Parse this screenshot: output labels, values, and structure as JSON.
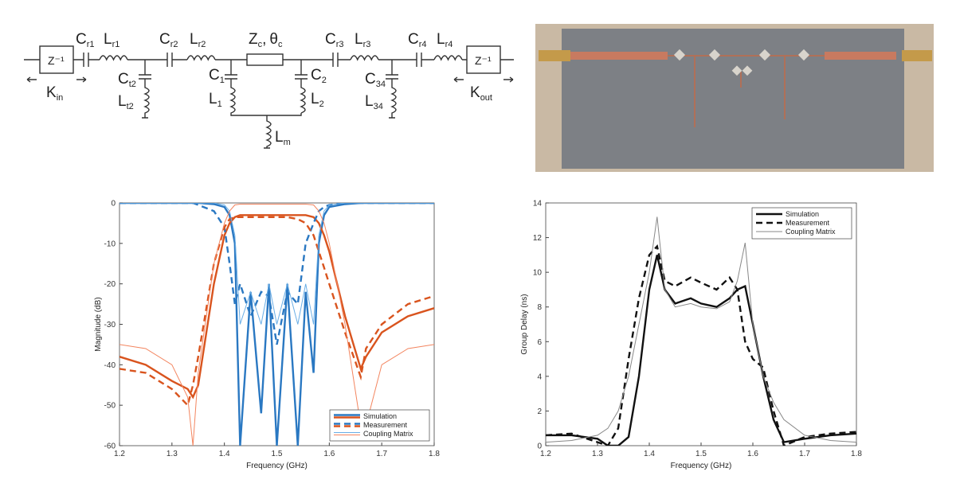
{
  "circuit": {
    "labels": [
      {
        "base": "C",
        "sub": "r1"
      },
      {
        "base": "L",
        "sub": "r1"
      },
      {
        "base": "C",
        "sub": "t2"
      },
      {
        "base": "L",
        "sub": "t2"
      },
      {
        "base": "C",
        "sub": "r2"
      },
      {
        "base": "L",
        "sub": "r2"
      },
      {
        "base": "Z",
        "sub": "c"
      },
      {
        "base": "θ",
        "sub": "c"
      },
      {
        "base": "C",
        "sub": "1"
      },
      {
        "base": "L",
        "sub": "1"
      },
      {
        "base": "C",
        "sub": "2"
      },
      {
        "base": "L",
        "sub": "2"
      },
      {
        "base": "L",
        "sub": "m"
      },
      {
        "base": "C",
        "sub": "r3"
      },
      {
        "base": "L",
        "sub": "r3"
      },
      {
        "base": "C",
        "sub": "34"
      },
      {
        "base": "L",
        "sub": "34"
      },
      {
        "base": "C",
        "sub": "r4"
      },
      {
        "base": "L",
        "sub": "r4"
      },
      {
        "base": "K",
        "sub": "in"
      },
      {
        "base": "K",
        "sub": "out"
      }
    ],
    "inverter": "Z⁻¹",
    "separator": ","
  },
  "chart_data": [
    {
      "type": "line",
      "xlabel": "Frequency (GHz)",
      "ylabel": "Magnitude (dB)",
      "xlim": [
        1.2,
        1.8
      ],
      "ylim": [
        -60,
        0
      ],
      "xticks": [
        1.2,
        1.3,
        1.4,
        1.5,
        1.6,
        1.7,
        1.8
      ],
      "yticks": [
        -60,
        -50,
        -40,
        -30,
        -20,
        -10,
        0
      ],
      "grid": false,
      "legend": "lower right",
      "x": [
        1.2,
        1.25,
        1.3,
        1.33,
        1.34,
        1.35,
        1.38,
        1.4,
        1.41,
        1.42,
        1.43,
        1.45,
        1.47,
        1.485,
        1.5,
        1.52,
        1.54,
        1.555,
        1.57,
        1.58,
        1.59,
        1.6,
        1.63,
        1.66,
        1.67,
        1.7,
        1.75,
        1.8
      ],
      "series": [
        {
          "name": "Simulation",
          "style": "solid",
          "lines": [
            {
              "color": "#2a78c2",
              "values": [
                0,
                0,
                0,
                0,
                0,
                0,
                -0.3,
                -1,
                -3,
                -10,
                -60,
                -22,
                -52,
                -20,
                -60,
                -20,
                -60,
                -22,
                -42,
                -10,
                -3,
                -1,
                -0.3,
                0,
                0,
                0,
                0,
                0
              ]
            },
            {
              "color": "#d9541e",
              "values": [
                -38,
                -40,
                -44,
                -46,
                -48,
                -45,
                -20,
                -8,
                -5,
                -3.5,
                -3,
                -3,
                -3,
                -3,
                -3,
                -3,
                -3,
                -3,
                -3.5,
                -5,
                -8,
                -12,
                -28,
                -41,
                -38,
                -32,
                -28,
                -26
              ]
            }
          ]
        },
        {
          "name": "Measurement",
          "style": "dashed",
          "lines": [
            {
              "color": "#2a78c2",
              "values": [
                0,
                0,
                0,
                0,
                0,
                -0.5,
                -2,
                -6,
                -15,
                -25,
                -20,
                -28,
                -22,
                -23,
                -35,
                -22,
                -25,
                -10,
                -5,
                -2,
                -1,
                -0.5,
                0,
                0,
                0,
                0,
                0,
                0
              ]
            },
            {
              "color": "#d9541e",
              "values": [
                -41,
                -42,
                -46,
                -50,
                -45,
                -38,
                -15,
                -6,
                -4,
                -3.5,
                -3.5,
                -3.5,
                -3.5,
                -3.5,
                -3.5,
                -3.5,
                -4,
                -5,
                -8,
                -12,
                -16,
                -20,
                -32,
                -43,
                -36,
                -30,
                -25,
                -23
              ]
            }
          ]
        },
        {
          "name": "Coupling Matrix",
          "style": "thin",
          "lines": [
            {
              "color": "#6aaee6",
              "values": [
                0,
                0,
                0,
                0,
                0,
                0,
                0,
                -0.5,
                -2,
                -8,
                -30,
                -22,
                -30,
                -20,
                -30,
                -20,
                -30,
                -20,
                -30,
                -8,
                -2,
                -0.5,
                0,
                0,
                0,
                0,
                0,
                0
              ]
            },
            {
              "color": "#f3855f",
              "values": [
                -35,
                -36,
                -40,
                -48,
                -60,
                -42,
                -15,
                -5,
                -2,
                -0.5,
                -0.3,
                -0.3,
                -0.3,
                -0.3,
                -0.3,
                -0.3,
                -0.3,
                -0.3,
                -0.5,
                -2,
                -5,
                -10,
                -30,
                -55,
                -55,
                -40,
                -36,
                -35
              ]
            }
          ]
        }
      ]
    },
    {
      "type": "line",
      "xlabel": "Frequency (GHz)",
      "ylabel": "Group Delay (ns)",
      "xlim": [
        1.2,
        1.8
      ],
      "ylim": [
        0,
        14
      ],
      "xticks": [
        1.2,
        1.3,
        1.4,
        1.5,
        1.6,
        1.7,
        1.8
      ],
      "yticks": [
        0,
        2,
        4,
        6,
        8,
        10,
        12,
        14
      ],
      "grid": false,
      "legend": "upper right",
      "x": [
        1.2,
        1.25,
        1.3,
        1.32,
        1.34,
        1.36,
        1.38,
        1.4,
        1.415,
        1.43,
        1.45,
        1.48,
        1.5,
        1.53,
        1.555,
        1.57,
        1.585,
        1.6,
        1.62,
        1.64,
        1.66,
        1.7,
        1.75,
        1.8
      ],
      "series": [
        {
          "name": "Simulation",
          "style": "solid",
          "lines": [
            {
              "color": "#111111",
              "values": [
                0.6,
                0.6,
                0.4,
                0,
                0,
                0.5,
                4,
                9,
                11,
                9,
                8.2,
                8.5,
                8.2,
                8,
                8.5,
                9,
                9.2,
                7,
                4,
                1.5,
                0.2,
                0.4,
                0.6,
                0.7
              ]
            }
          ]
        },
        {
          "name": "Measurement",
          "style": "dashed",
          "lines": [
            {
              "color": "#111111",
              "values": [
                0.6,
                0.7,
                0.2,
                0,
                1,
                5,
                8.5,
                11,
                11.5,
                9.5,
                9.2,
                9.7,
                9.4,
                9,
                9.7,
                9,
                6,
                5,
                4.5,
                2,
                0,
                0.5,
                0.7,
                0.8
              ]
            }
          ]
        },
        {
          "name": "Coupling Matrix",
          "style": "thin",
          "lines": [
            {
              "color": "#888888",
              "values": [
                0.2,
                0.3,
                0.6,
                1,
                2,
                4,
                7,
                10,
                13.2,
                9,
                8,
                8.2,
                8,
                7.9,
                8.3,
                9.5,
                11.7,
                7,
                4,
                2.5,
                1.5,
                0.6,
                0.3,
                0.2
              ]
            }
          ]
        }
      ]
    }
  ]
}
